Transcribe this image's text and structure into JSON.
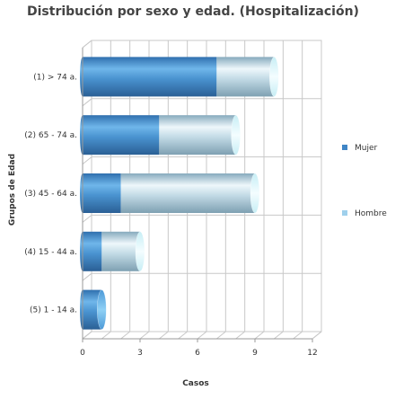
{
  "chart_data": {
    "type": "bar",
    "orientation": "horizontal",
    "stacked": true,
    "style": "3d-cylinder",
    "title": "Distribución por sexo y edad. (Hospitalización)",
    "xlabel": "Casos",
    "ylabel": "Grupos de Edad",
    "xlim": [
      0,
      12
    ],
    "xticks": [
      "0",
      "3",
      "6",
      "9",
      "12"
    ],
    "grid": true,
    "legend_position": "right",
    "categories": [
      "(1) > 74 a.",
      "(2) 65 - 74 a.",
      "(3) 45 - 64 a.",
      "(4) 15 - 44 a.",
      "(5) 1 - 14 a."
    ],
    "series": [
      {
        "name": "Mujer",
        "color": "#3f86c6",
        "values": [
          7,
          4,
          2,
          1,
          1
        ]
      },
      {
        "name": "Hombre",
        "color": "#9fd0ec",
        "values": [
          3,
          4,
          7,
          2,
          0
        ]
      }
    ]
  }
}
